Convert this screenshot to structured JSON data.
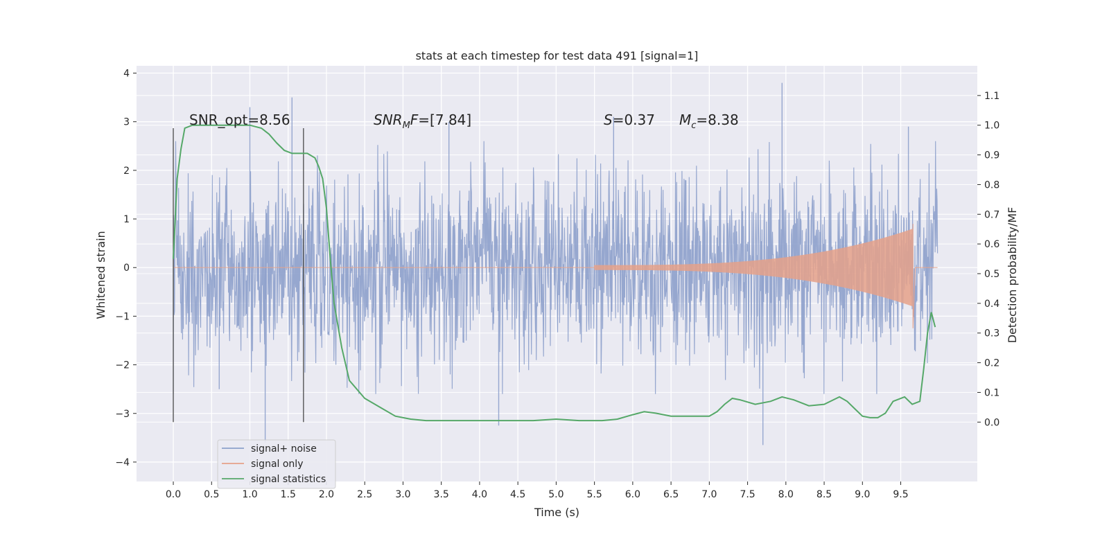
{
  "chart_data": {
    "type": "line",
    "title": "stats at each timestep for test data 491 [signal=1]",
    "xlabel": "Time (s)",
    "ylabel_left": "Whitened strain",
    "ylabel_right": "Detection probability/MF",
    "x_ticks": [
      0.0,
      0.5,
      1.0,
      1.5,
      2.0,
      2.5,
      3.0,
      3.5,
      4.0,
      4.5,
      5.0,
      5.5,
      6.0,
      6.5,
      7.0,
      7.5,
      8.0,
      8.5,
      9.0,
      9.5
    ],
    "x_tick_labels": [
      "0.0",
      "0.5",
      "1.0",
      "1.5",
      "2.0",
      "2.5",
      "3.0",
      "3.5",
      "4.0",
      "4.5",
      "5.0",
      "5.5",
      "6.0",
      "6.5",
      "7.0",
      "7.5",
      "8.0",
      "8.5",
      "9.0",
      "9.5"
    ],
    "y_left_ticks": [
      4,
      3,
      2,
      1,
      0,
      -1,
      -2,
      -3,
      -4
    ],
    "y_left_tick_labels": [
      "4",
      "3",
      "2",
      "1",
      "0",
      "−1",
      "−2",
      "−3",
      "−4"
    ],
    "y_right_ticks": [
      1.1,
      1.0,
      0.9,
      0.8,
      0.7,
      0.6,
      0.5,
      0.4,
      0.3,
      0.2,
      0.1,
      0.0
    ],
    "y_right_tick_labels": [
      "1.1",
      "1.0",
      "0.9",
      "0.8",
      "0.7",
      "0.6",
      "0.5",
      "0.4",
      "0.3",
      "0.2",
      "0.1",
      "0.0"
    ],
    "xlim": [
      -0.48,
      10.5
    ],
    "ylim_left": [
      -4.4,
      4.15
    ],
    "ylim_right": [
      -0.2,
      1.2
    ],
    "grid": true,
    "legend_position": "lower-left",
    "annotations": {
      "snr_opt": "SNR_opt=8.56",
      "snr_mf_prefix": "SNR",
      "snr_mf_sub": "M",
      "snr_mf_suffix": "F=[7.84]",
      "s_prefix": "S",
      "s_suffix": "=0.37",
      "mc_prefix": "M",
      "mc_sub": "c",
      "mc_suffix": "=8.38"
    },
    "vertical_markers_x": [
      0.0,
      1.7
    ],
    "series": [
      {
        "name": "signal+ noise",
        "axis": "left",
        "color": "#8da0cb",
        "description_values": {
          "x_range": [
            0.0,
            9.98
          ],
          "typical_amplitude": 1.0,
          "peaks": [
            [
              1.55,
              3.5
            ],
            [
              7.95,
              3.8
            ],
            [
              1.2,
              -3.6
            ],
            [
              7.7,
              -3.65
            ],
            [
              9.6,
              2.9
            ],
            [
              5.75,
              3.1
            ],
            [
              3.6,
              3.0
            ],
            [
              1.0,
              3.3
            ],
            [
              0.6,
              -2.5
            ],
            [
              4.25,
              -3.25
            ]
          ]
        }
      },
      {
        "name": "signal only",
        "axis": "left",
        "color": "#e5a189",
        "chirp": {
          "start": 5.5,
          "end": 9.66,
          "max_amplitude": 0.9,
          "min_amplitude": -1.25,
          "start_amplitude": 0.05
        }
      },
      {
        "name": "signal statistics",
        "axis": "right",
        "color": "#55a868",
        "x": [
          0.0,
          0.05,
          0.1,
          0.15,
          0.25,
          0.4,
          0.6,
          0.8,
          1.0,
          1.15,
          1.25,
          1.35,
          1.45,
          1.55,
          1.65,
          1.75,
          1.85,
          1.9,
          1.95,
          2.0,
          2.05,
          2.1,
          2.2,
          2.3,
          2.5,
          2.7,
          2.9,
          3.1,
          3.3,
          3.5,
          3.8,
          4.1,
          4.4,
          4.7,
          5.0,
          5.3,
          5.6,
          5.8,
          6.0,
          6.15,
          6.3,
          6.5,
          6.8,
          7.0,
          7.1,
          7.2,
          7.3,
          7.4,
          7.6,
          7.8,
          7.95,
          8.1,
          8.3,
          8.5,
          8.7,
          8.8,
          8.9,
          9.0,
          9.1,
          9.2,
          9.3,
          9.4,
          9.55,
          9.65,
          9.75,
          9.8,
          9.85,
          9.9,
          9.95
        ],
        "y": [
          0.55,
          0.82,
          0.92,
          0.99,
          1.0,
          1.0,
          1.0,
          1.0,
          1.0,
          0.99,
          0.97,
          0.94,
          0.915,
          0.905,
          0.905,
          0.905,
          0.89,
          0.86,
          0.82,
          0.72,
          0.55,
          0.4,
          0.25,
          0.14,
          0.08,
          0.05,
          0.02,
          0.01,
          0.005,
          0.005,
          0.005,
          0.005,
          0.005,
          0.005,
          0.01,
          0.005,
          0.005,
          0.01,
          0.025,
          0.035,
          0.03,
          0.02,
          0.02,
          0.02,
          0.035,
          0.06,
          0.08,
          0.075,
          0.06,
          0.07,
          0.085,
          0.075,
          0.055,
          0.06,
          0.085,
          0.07,
          0.045,
          0.02,
          0.015,
          0.015,
          0.03,
          0.07,
          0.085,
          0.06,
          0.07,
          0.18,
          0.3,
          0.37,
          0.32
        ]
      }
    ]
  }
}
